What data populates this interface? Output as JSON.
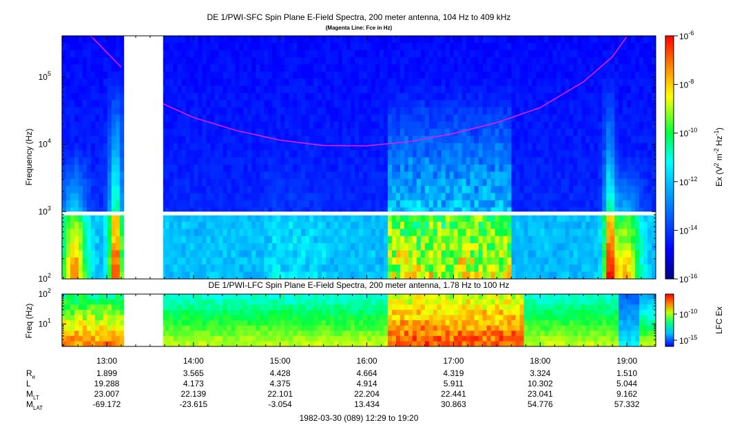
{
  "chart_data": [
    {
      "type": "heatmap",
      "title": "DE 1/PWI-SFC  Spin Plane E-Field Spectra, 200 meter antenna, 104 Hz to 409 kHz",
      "subtitle": "(Magenta Line: Fce in Hz)",
      "ylabel": "Frequency (Hz)",
      "yscale": "log",
      "ylim": [
        100,
        409000
      ],
      "yticks": [
        {
          "value": 100,
          "base": "10",
          "exp": "2"
        },
        {
          "value": 1000,
          "base": "10",
          "exp": "3"
        },
        {
          "value": 10000,
          "base": "10",
          "exp": "4"
        },
        {
          "value": 100000,
          "base": "10",
          "exp": "5"
        }
      ],
      "data_gaps": [
        {
          "t_start": "13:12",
          "t_end": "13:39",
          "f_min": 100,
          "f_max": 409000
        },
        {
          "t_start": "12:29",
          "t_end": "19:20",
          "f_min": 880,
          "f_max": 1000
        }
      ],
      "fce_line": {
        "name": "Fce",
        "color": "#e81ce8",
        "segments": [
          [
            {
              "t": "12:48",
              "f": 430000
            },
            {
              "t": "12:55",
              "f": 300000
            },
            {
              "t": "13:02",
              "f": 210000
            },
            {
              "t": "13:10",
              "f": 140000
            }
          ],
          [
            {
              "t": "13:39",
              "f": 40000
            },
            {
              "t": "14:00",
              "f": 25000
            },
            {
              "t": "14:30",
              "f": 16000
            },
            {
              "t": "15:00",
              "f": 11500
            },
            {
              "t": "15:30",
              "f": 9600
            },
            {
              "t": "16:00",
              "f": 9500
            },
            {
              "t": "16:30",
              "f": 11000
            },
            {
              "t": "17:00",
              "f": 14500
            },
            {
              "t": "17:30",
              "f": 21000
            },
            {
              "t": "18:00",
              "f": 35000
            },
            {
              "t": "18:30",
              "f": 85000
            },
            {
              "t": "18:50",
              "f": 200000
            },
            {
              "t": "19:00",
              "f": 400000
            }
          ]
        ]
      },
      "colorbar": {
        "label_base": "Ex (V",
        "label_sup1": "2",
        "label_mid": " m",
        "label_sup2": "-2",
        "label_mid2": " Hz",
        "label_sup3": "-1",
        "label_end": ")",
        "scale": "log",
        "range": [
          1e-16,
          1e-06
        ],
        "ticks": [
          {
            "value": 1e-06,
            "base": "10",
            "exp": "-6"
          },
          {
            "value": 1e-08,
            "base": "10",
            "exp": "-8"
          },
          {
            "value": 1e-10,
            "base": "10",
            "exp": "-10"
          },
          {
            "value": 1e-12,
            "base": "10",
            "exp": "-12"
          },
          {
            "value": 1e-14,
            "base": "10",
            "exp": "-14"
          },
          {
            "value": 1e-16,
            "base": "10",
            "exp": "-16"
          }
        ]
      }
    },
    {
      "type": "heatmap",
      "title": "DE 1/PWI-LFC  Spin Plane E-Field Spectra, 200 meter antenna, 1.78 Hz to 100 Hz",
      "ylabel": "Freq (Hz)",
      "yscale": "log",
      "ylim": [
        1.78,
        100
      ],
      "yticks": [
        {
          "value": 10,
          "base": "10",
          "exp": "1"
        },
        {
          "value": 100,
          "base": "10",
          "exp": "2"
        }
      ],
      "data_gaps": [
        {
          "t_start": "13:12",
          "t_end": "13:39",
          "f_min": 1.78,
          "f_max": 100
        }
      ],
      "colorbar": {
        "label": "LFC Ex",
        "scale": "log",
        "ticks": [
          {
            "value": 1e-10,
            "base": "10",
            "exp": "-10"
          },
          {
            "value": 1e-15,
            "base": "10",
            "exp": "-15"
          }
        ]
      }
    }
  ],
  "time_axis": {
    "start": "12:29",
    "end": "19:20",
    "xlabel": "1982-03-30 (089) 12:29 to 19:20",
    "ticks": [
      "13:00",
      "14:00",
      "15:00",
      "16:00",
      "17:00",
      "18:00",
      "19:00"
    ]
  },
  "ephemeris": {
    "rows": [
      {
        "label": "R",
        "sub": "e",
        "values": [
          "1.899",
          "3.565",
          "4.428",
          "4.664",
          "4.319",
          "3.324",
          "1.510"
        ]
      },
      {
        "label": "L",
        "sub": "",
        "values": [
          "19.288",
          "4.173",
          "4.375",
          "4.914",
          "5.911",
          "10.302",
          "5.044"
        ]
      },
      {
        "label": "M",
        "sub": "LT",
        "values": [
          "23.007",
          "22.139",
          "22.101",
          "22.204",
          "22.441",
          "23.041",
          "9.162"
        ]
      },
      {
        "label": "M",
        "sub": "LAT",
        "values": [
          "-69.172",
          "-23.615",
          "-3.054",
          "13.434",
          "30.863",
          "54.776",
          "57.332"
        ]
      }
    ]
  }
}
